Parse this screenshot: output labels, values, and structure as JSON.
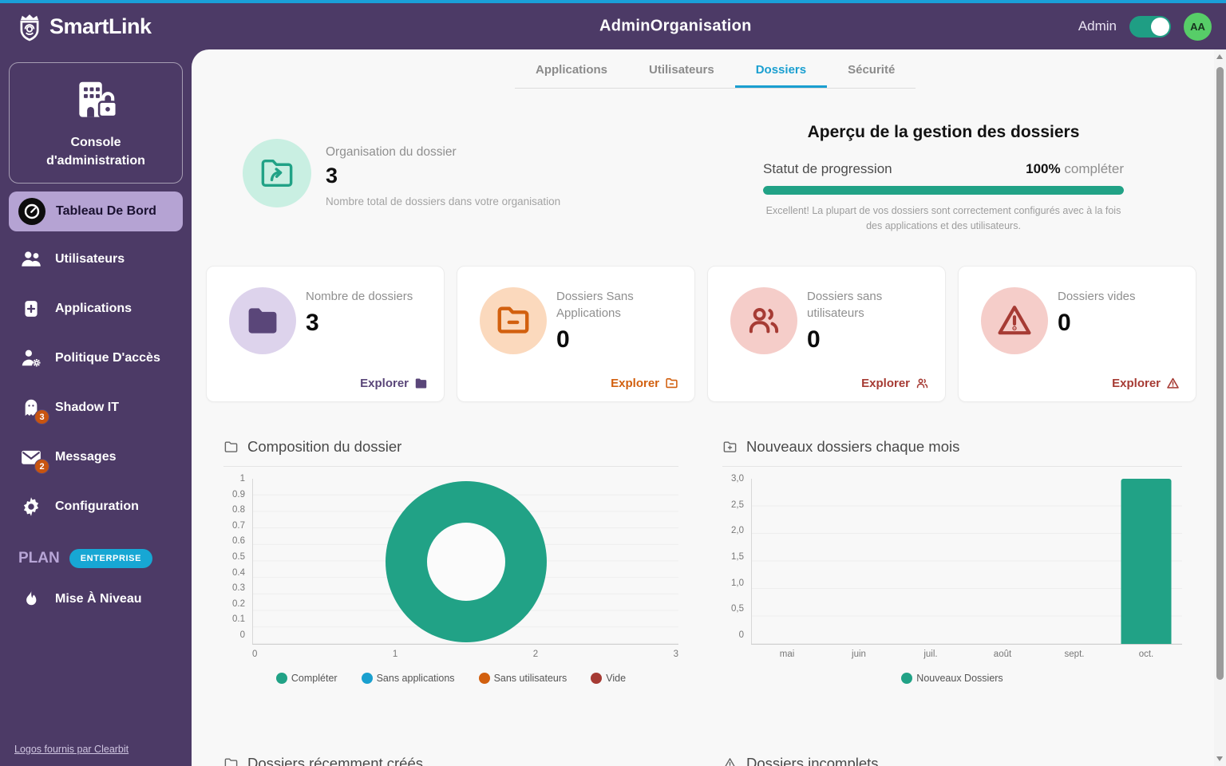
{
  "header": {
    "brand": "SmartLink",
    "title": "AdminOrganisation",
    "admin_label": "Admin",
    "avatar_initials": "AA"
  },
  "sidebar": {
    "console_title": "Console d'administration",
    "items": [
      {
        "label": "Tableau De Bord",
        "active": true
      },
      {
        "label": "Utilisateurs"
      },
      {
        "label": "Applications"
      },
      {
        "label": "Politique D'accès"
      },
      {
        "label": "Shadow IT",
        "badge": "3"
      },
      {
        "label": "Messages",
        "badge": "2"
      },
      {
        "label": "Configuration"
      }
    ],
    "plan_label": "PLAN",
    "plan_badge": "ENTERPRISE",
    "upgrade_label": "Mise À Niveau",
    "footer_link": "Logos fournis par Clearbit"
  },
  "tabs": [
    {
      "label": "Applications",
      "active": false
    },
    {
      "label": "Utilisateurs",
      "active": false
    },
    {
      "label": "Dossiers",
      "active": true
    },
    {
      "label": "Sécurité",
      "active": false
    }
  ],
  "overview": {
    "left": {
      "title": "Organisation du dossier",
      "value": "3",
      "caption": "Nombre total de dossiers dans votre organisation"
    },
    "right": {
      "title": "Aperçu de la gestion des dossiers",
      "progress_label": "Statut de progression",
      "progress_value": "100%",
      "progress_suffix": "compléter",
      "progress_percent": 100,
      "caption": "Excellent! La plupart de vos dossiers sont correctement configurés avec à la fois des applications et des utilisateurs."
    }
  },
  "stat_cards": [
    {
      "label": "Nombre de dossiers",
      "value": "3",
      "action": "Explorer",
      "accent": "#5a4679"
    },
    {
      "label": "Dossiers Sans Applications",
      "value": "0",
      "action": "Explorer",
      "accent": "#d2600f"
    },
    {
      "label": "Dossiers sans utilisateurs",
      "value": "0",
      "action": "Explorer",
      "accent": "#a63b34"
    },
    {
      "label": "Dossiers vides",
      "value": "0",
      "action": "Explorer",
      "accent": "#a63b34"
    }
  ],
  "chart_data": [
    {
      "type": "pie",
      "title": "Composition du dossier",
      "labels": [
        "Compléter",
        "Sans applications",
        "Sans utilisateurs",
        "Vide"
      ],
      "values": [
        3,
        0,
        0,
        0
      ],
      "colors": [
        "#21a286",
        "#1aa0cf",
        "#d2600f",
        "#a63b34"
      ],
      "y_ticks": [
        "1",
        "0.9",
        "0.8",
        "0.7",
        "0.6",
        "0.5",
        "0.4",
        "0.3",
        "0.2",
        "0.1",
        "0"
      ],
      "x_ticks": [
        "0",
        "1",
        "2",
        "3"
      ],
      "legend_position": "bottom"
    },
    {
      "type": "bar",
      "title": "Nouveaux dossiers chaque mois",
      "categories": [
        "mai",
        "juin",
        "juil.",
        "août",
        "sept.",
        "oct."
      ],
      "series": [
        {
          "name": "Nouveaux Dossiers",
          "color": "#21a286",
          "values": [
            0,
            0,
            0,
            0,
            0,
            3
          ]
        }
      ],
      "ylim": [
        0,
        3
      ],
      "y_ticks": [
        "3,0",
        "2,5",
        "2,0",
        "1,5",
        "1,0",
        "0,5",
        "0"
      ],
      "legend_position": "bottom"
    }
  ],
  "bottom_sections": [
    {
      "title": "Dossiers récemment créés"
    },
    {
      "title": "Dossiers incomplets"
    }
  ],
  "colors": {
    "accent_teal": "#21a286",
    "accent_blue": "#1a9fd0",
    "header_purple": "#4c3a66",
    "sidebar_active": "#b5a3d3",
    "badge_orange": "#c75410",
    "avatar_green": "#57cd68"
  }
}
